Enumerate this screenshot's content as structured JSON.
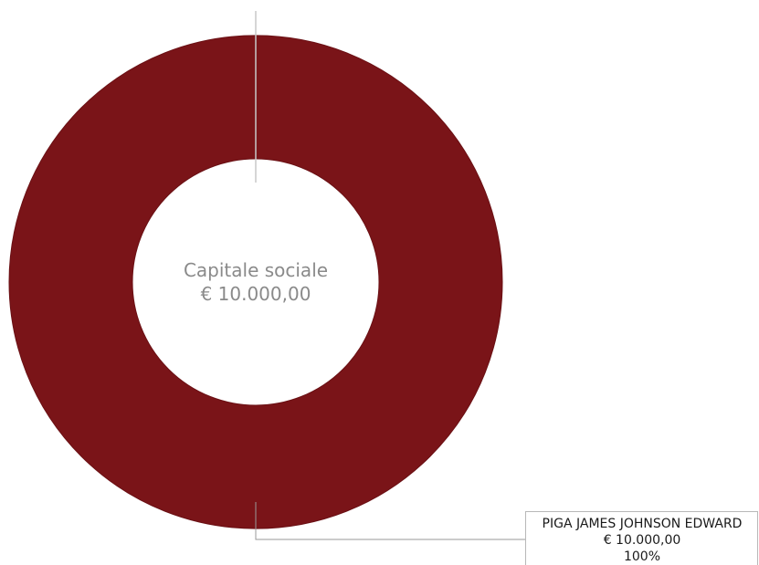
{
  "chart_data": {
    "type": "pie",
    "donut": true,
    "center_label": {
      "title": "Capitale sociale",
      "value": "€ 10.000,00"
    },
    "slices": [
      {
        "name": "PIGA JAMES JOHNSON EDWARD",
        "value": 10000,
        "value_label": "€ 10.000,00",
        "percent_label": "100%",
        "color": "#7a1418"
      }
    ]
  }
}
